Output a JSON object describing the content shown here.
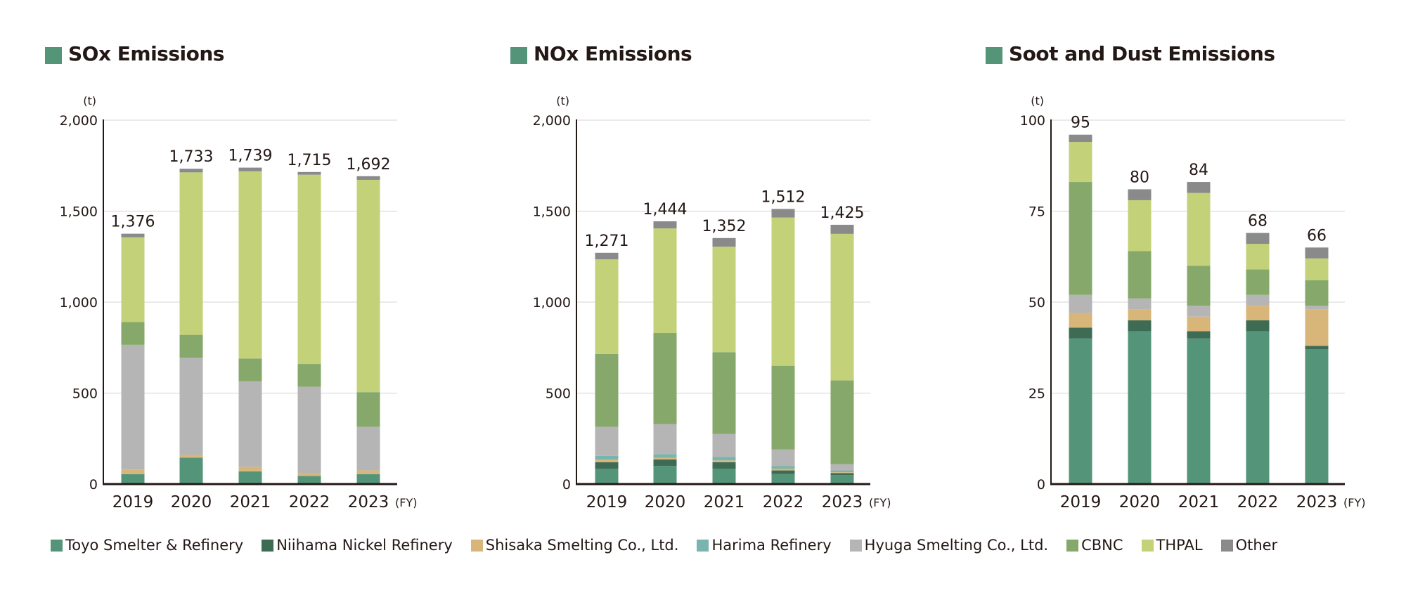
{
  "colors": {
    "Toyo Smelter & Refinery": "#54957a",
    "Niihama Nickel Refinery": "#3d6b53",
    "Shisaka Smelting Co., Ltd.": "#d8b67a",
    "Harima Refinery": "#7ab4ae",
    "Hyuga Smelting Co., Ltd.": "#b5b5b5",
    "CBNC": "#86a86a",
    "THPAL": "#c3d178",
    "Other": "#8a8a8a",
    "title_square": "#54957a"
  },
  "legend": [
    "Toyo Smelter & Refinery",
    "Niihama Nickel Refinery",
    "Shisaka Smelting Co., Ltd.",
    "Harima Refinery",
    "Hyuga Smelting Co., Ltd.",
    "CBNC",
    "THPAL",
    "Other"
  ],
  "chart_data": [
    {
      "type": "bar",
      "stacked": true,
      "title": "SOx Emissions",
      "ylabel": "(t)",
      "xlabel": "(FY)",
      "ylim": [
        0,
        2000
      ],
      "yticks": [
        "0",
        "500",
        "1,000",
        "1,500",
        "2,000"
      ],
      "categories": [
        "2019",
        "2020",
        "2021",
        "2022",
        "2023"
      ],
      "totals": [
        "1,376",
        "1,733",
        "1,739",
        "1,715",
        "1,692"
      ],
      "series": [
        {
          "name": "Toyo Smelter & Refinery",
          "values": [
            55,
            145,
            70,
            45,
            55
          ]
        },
        {
          "name": "Niihama Nickel Refinery",
          "values": [
            0,
            0,
            0,
            0,
            0
          ]
        },
        {
          "name": "Shisaka Smelting Co., Ltd.",
          "values": [
            25,
            15,
            25,
            15,
            20
          ]
        },
        {
          "name": "Harima Refinery",
          "values": [
            0,
            0,
            0,
            0,
            0
          ]
        },
        {
          "name": "Hyuga Smelting Co., Ltd.",
          "values": [
            685,
            535,
            470,
            475,
            240
          ]
        },
        {
          "name": "CBNC",
          "values": [
            125,
            125,
            125,
            125,
            190
          ]
        },
        {
          "name": "THPAL",
          "values": [
            466,
            893,
            1029,
            1040,
            1167
          ]
        },
        {
          "name": "Other",
          "values": [
            20,
            20,
            20,
            15,
            20
          ]
        }
      ]
    },
    {
      "type": "bar",
      "stacked": true,
      "title": "NOx Emissions",
      "ylabel": "(t)",
      "xlabel": "(FY)",
      "ylim": [
        0,
        2000
      ],
      "yticks": [
        "0",
        "500",
        "1,000",
        "1,500",
        "2,000"
      ],
      "categories": [
        "2019",
        "2020",
        "2021",
        "2022",
        "2023"
      ],
      "totals": [
        "1,271",
        "1,444",
        "1,352",
        "1,512",
        "1,425"
      ],
      "series": [
        {
          "name": "Toyo Smelter & Refinery",
          "values": [
            85,
            100,
            85,
            55,
            50
          ]
        },
        {
          "name": "Niihama Nickel Refinery",
          "values": [
            35,
            35,
            35,
            20,
            10
          ]
        },
        {
          "name": "Shisaka Smelting Co., Ltd.",
          "values": [
            15,
            10,
            10,
            10,
            5
          ]
        },
        {
          "name": "Harima Refinery",
          "values": [
            20,
            20,
            20,
            15,
            10
          ]
        },
        {
          "name": "Hyuga Smelting Co., Ltd.",
          "values": [
            160,
            165,
            125,
            90,
            35
          ]
        },
        {
          "name": "CBNC",
          "values": [
            400,
            500,
            450,
            460,
            460
          ]
        },
        {
          "name": "THPAL",
          "values": [
            520,
            575,
            580,
            815,
            805
          ]
        },
        {
          "name": "Other",
          "values": [
            36,
            39,
            47,
            47,
            50
          ]
        }
      ]
    },
    {
      "type": "bar",
      "stacked": true,
      "title": "Soot and Dust Emissions",
      "ylabel": "(t)",
      "xlabel": "(FY)",
      "ylim": [
        0,
        100
      ],
      "yticks": [
        "0",
        "25",
        "50",
        "75",
        "100"
      ],
      "categories": [
        "2019",
        "2020",
        "2021",
        "2022",
        "2023"
      ],
      "totals": [
        "95",
        "80",
        "84",
        "68",
        "66"
      ],
      "series": [
        {
          "name": "Toyo Smelter & Refinery",
          "values": [
            40,
            42,
            40,
            42,
            37
          ]
        },
        {
          "name": "Niihama Nickel Refinery",
          "values": [
            3,
            3,
            2,
            3,
            1
          ]
        },
        {
          "name": "Shisaka Smelting Co., Ltd.",
          "values": [
            4,
            3,
            4,
            4,
            10
          ]
        },
        {
          "name": "Harima Refinery",
          "values": [
            0,
            0,
            0,
            0,
            0
          ]
        },
        {
          "name": "Hyuga Smelting Co., Ltd.",
          "values": [
            5,
            3,
            3,
            3,
            1
          ]
        },
        {
          "name": "CBNC",
          "values": [
            31,
            13,
            11,
            7,
            7
          ]
        },
        {
          "name": "THPAL",
          "values": [
            11,
            14,
            20,
            7,
            6
          ]
        },
        {
          "name": "Other",
          "values": [
            2,
            3,
            3,
            3,
            3
          ]
        }
      ]
    }
  ]
}
